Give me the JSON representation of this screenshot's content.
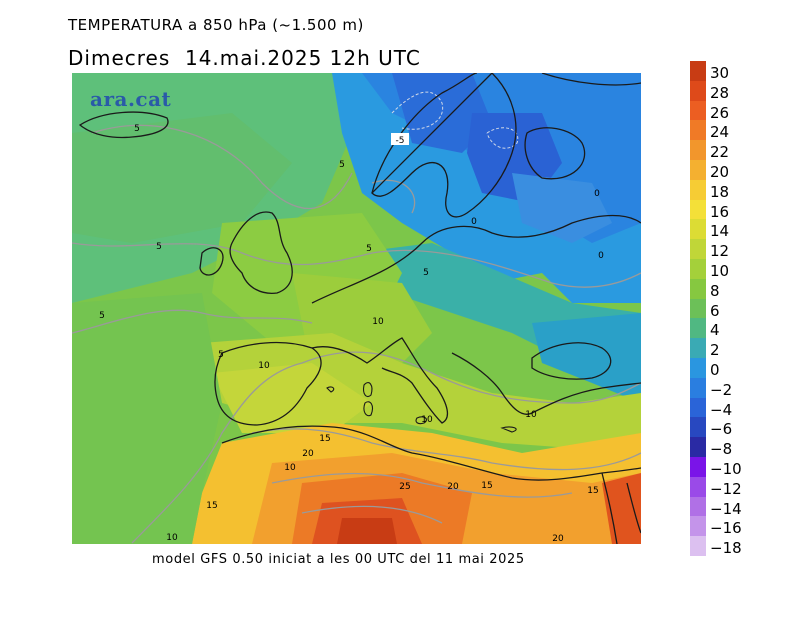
{
  "header": {
    "title": "TEMPERATURA a 850 hPa (~1.500 m)",
    "subtitle": "Dimecres  14.mai.2025 12h UTC"
  },
  "map": {
    "logo": "ara.cat",
    "contour_labels": [
      {
        "text": "-5"
      },
      {
        "text": "5"
      },
      {
        "text": "5"
      },
      {
        "text": "5"
      },
      {
        "text": "5"
      },
      {
        "text": "5"
      },
      {
        "text": "5"
      },
      {
        "text": "0"
      },
      {
        "text": "0"
      },
      {
        "text": "0"
      },
      {
        "text": "10"
      },
      {
        "text": "10"
      },
      {
        "text": "5"
      },
      {
        "text": "10"
      },
      {
        "text": "10"
      },
      {
        "text": "15"
      },
      {
        "text": "20"
      },
      {
        "text": "10"
      },
      {
        "text": "15"
      },
      {
        "text": "25"
      },
      {
        "text": "20"
      },
      {
        "text": "15"
      },
      {
        "text": "15"
      },
      {
        "text": "20"
      },
      {
        "text": "10"
      }
    ]
  },
  "colorbar": {
    "labels": [
      "30",
      "28",
      "26",
      "24",
      "22",
      "20",
      "18",
      "16",
      "14",
      "12",
      "10",
      "8",
      "6",
      "4",
      "2",
      "0",
      "−2",
      "−4",
      "−6",
      "−8",
      "−10",
      "−12",
      "−14",
      "−16",
      "−18"
    ],
    "colors": [
      "#c83c14",
      "#de4a1a",
      "#ec5e22",
      "#f07a26",
      "#f2962c",
      "#f4b030",
      "#f6cc34",
      "#f4e038",
      "#dcdc34",
      "#c0d638",
      "#a4d03a",
      "#86c840",
      "#6cc058",
      "#50b882",
      "#3aaab4",
      "#2a96e0",
      "#2a7ee0",
      "#2a64d8",
      "#2848c0",
      "#2a2aa4",
      "#7a14e8",
      "#9a4ae8",
      "#b070e6",
      "#c494ea",
      "#dcc0f0"
    ]
  },
  "footer": {
    "text": "model GFS 0.50 iniciat a les 00 UTC del 11 mai 2025"
  }
}
